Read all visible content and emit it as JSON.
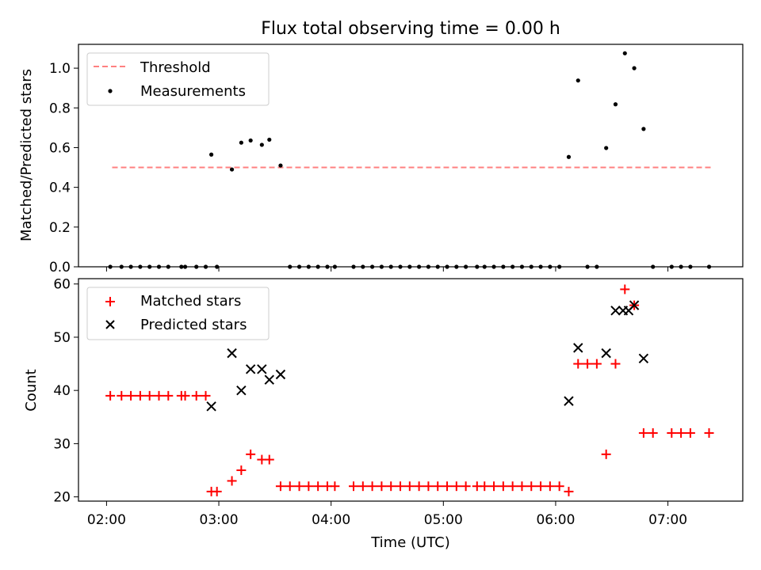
{
  "chart_data": [
    {
      "type": "scatter",
      "title": "Flux total observing time = 0.00 h",
      "xlabel": "",
      "ylabel": "Matched/Predicted stars",
      "xlim": [
        "01:45",
        "07:40"
      ],
      "ylim": [
        0,
        1.12
      ],
      "yticks": [
        "0.0",
        "0.2",
        "0.4",
        "0.6",
        "0.8",
        "1.0"
      ],
      "grid": false,
      "legend_position": "top-left",
      "threshold": {
        "name": "Threshold",
        "value": 0.5,
        "x_start": "02:03",
        "x_end": "07:23",
        "color": "#ff8080",
        "style": "dashed"
      },
      "series": [
        {
          "name": "Measurements",
          "marker": "dot",
          "color": "#000000",
          "points": [
            [
              "02:02",
              0
            ],
            [
              "02:08",
              0
            ],
            [
              "02:13",
              0
            ],
            [
              "02:18",
              0
            ],
            [
              "02:23",
              0
            ],
            [
              "02:28",
              0
            ],
            [
              "02:33",
              0
            ],
            [
              "02:40",
              0
            ],
            [
              "02:42",
              0
            ],
            [
              "02:48",
              0
            ],
            [
              "02:53",
              0
            ],
            [
              "02:56",
              0.565
            ],
            [
              "02:59",
              0
            ],
            [
              "03:07",
              0.49
            ],
            [
              "03:12",
              0.625
            ],
            [
              "03:17",
              0.636
            ],
            [
              "03:23",
              0.614
            ],
            [
              "03:27",
              0.64
            ],
            [
              "03:33",
              0.51
            ],
            [
              "03:38",
              0
            ],
            [
              "03:43",
              0
            ],
            [
              "03:48",
              0
            ],
            [
              "03:53",
              0
            ],
            [
              "03:58",
              0
            ],
            [
              "04:02",
              0
            ],
            [
              "04:12",
              0
            ],
            [
              "04:17",
              0
            ],
            [
              "04:22",
              0
            ],
            [
              "04:27",
              0
            ],
            [
              "04:32",
              0
            ],
            [
              "04:37",
              0
            ],
            [
              "04:42",
              0
            ],
            [
              "04:47",
              0
            ],
            [
              "04:52",
              0
            ],
            [
              "04:57",
              0
            ],
            [
              "05:02",
              0
            ],
            [
              "05:07",
              0
            ],
            [
              "05:12",
              0
            ],
            [
              "05:18",
              0
            ],
            [
              "05:22",
              0
            ],
            [
              "05:27",
              0
            ],
            [
              "05:32",
              0
            ],
            [
              "05:37",
              0
            ],
            [
              "05:42",
              0
            ],
            [
              "05:47",
              0
            ],
            [
              "05:52",
              0
            ],
            [
              "05:57",
              0
            ],
            [
              "06:02",
              0
            ],
            [
              "06:07",
              0.553
            ],
            [
              "06:12",
              0.938
            ],
            [
              "06:17",
              0
            ],
            [
              "06:22",
              0
            ],
            [
              "06:27",
              0.598
            ],
            [
              "06:32",
              0.818
            ],
            [
              "06:37",
              1.075
            ],
            [
              "06:42",
              1.0
            ],
            [
              "06:47",
              0.694
            ],
            [
              "06:52",
              0
            ],
            [
              "07:02",
              0
            ],
            [
              "07:07",
              0
            ],
            [
              "07:12",
              0
            ],
            [
              "07:22",
              0
            ]
          ]
        }
      ]
    },
    {
      "type": "scatter",
      "title": "",
      "xlabel": "Time (UTC)",
      "ylabel": "Count",
      "xlim": [
        "01:45",
        "07:40"
      ],
      "ylim": [
        19.2,
        61
      ],
      "yticks": [
        "20",
        "30",
        "40",
        "50",
        "60"
      ],
      "xticks": [
        "02:00",
        "03:00",
        "04:00",
        "05:00",
        "06:00",
        "07:00"
      ],
      "grid": false,
      "legend_position": "top-left",
      "series": [
        {
          "name": "Matched stars",
          "marker": "plus",
          "color": "#ff0000",
          "points": [
            [
              "02:02",
              39
            ],
            [
              "02:08",
              39
            ],
            [
              "02:13",
              39
            ],
            [
              "02:18",
              39
            ],
            [
              "02:23",
              39
            ],
            [
              "02:28",
              39
            ],
            [
              "02:33",
              39
            ],
            [
              "02:40",
              39
            ],
            [
              "02:42",
              39
            ],
            [
              "02:48",
              39
            ],
            [
              "02:53",
              39
            ],
            [
              "02:56",
              21
            ],
            [
              "02:59",
              21
            ],
            [
              "03:07",
              23
            ],
            [
              "03:12",
              25
            ],
            [
              "03:17",
              28
            ],
            [
              "03:23",
              27
            ],
            [
              "03:27",
              27
            ],
            [
              "03:33",
              22
            ],
            [
              "03:38",
              22
            ],
            [
              "03:43",
              22
            ],
            [
              "03:48",
              22
            ],
            [
              "03:53",
              22
            ],
            [
              "03:58",
              22
            ],
            [
              "04:02",
              22
            ],
            [
              "04:12",
              22
            ],
            [
              "04:17",
              22
            ],
            [
              "04:22",
              22
            ],
            [
              "04:27",
              22
            ],
            [
              "04:32",
              22
            ],
            [
              "04:37",
              22
            ],
            [
              "04:42",
              22
            ],
            [
              "04:47",
              22
            ],
            [
              "04:52",
              22
            ],
            [
              "04:57",
              22
            ],
            [
              "05:02",
              22
            ],
            [
              "05:07",
              22
            ],
            [
              "05:12",
              22
            ],
            [
              "05:18",
              22
            ],
            [
              "05:22",
              22
            ],
            [
              "05:27",
              22
            ],
            [
              "05:32",
              22
            ],
            [
              "05:37",
              22
            ],
            [
              "05:42",
              22
            ],
            [
              "05:47",
              22
            ],
            [
              "05:52",
              22
            ],
            [
              "05:57",
              22
            ],
            [
              "06:02",
              22
            ],
            [
              "06:07",
              21
            ],
            [
              "06:12",
              45
            ],
            [
              "06:17",
              45
            ],
            [
              "06:22",
              45
            ],
            [
              "06:27",
              28
            ],
            [
              "06:32",
              45
            ],
            [
              "06:37",
              59
            ],
            [
              "06:42",
              56
            ],
            [
              "06:47",
              32
            ],
            [
              "06:52",
              32
            ],
            [
              "07:02",
              32
            ],
            [
              "07:07",
              32
            ],
            [
              "07:12",
              32
            ],
            [
              "07:22",
              32
            ]
          ]
        },
        {
          "name": "Predicted stars",
          "marker": "x",
          "color": "#000000",
          "points": [
            [
              "02:56",
              37
            ],
            [
              "03:07",
              47
            ],
            [
              "03:12",
              40
            ],
            [
              "03:17",
              44
            ],
            [
              "03:23",
              44
            ],
            [
              "03:27",
              42
            ],
            [
              "03:33",
              43
            ],
            [
              "06:07",
              38
            ],
            [
              "06:12",
              48
            ],
            [
              "06:27",
              47
            ],
            [
              "06:32",
              55
            ],
            [
              "06:36",
              55
            ],
            [
              "06:39",
              55
            ],
            [
              "06:42",
              56
            ],
            [
              "06:47",
              46
            ]
          ]
        }
      ]
    }
  ]
}
